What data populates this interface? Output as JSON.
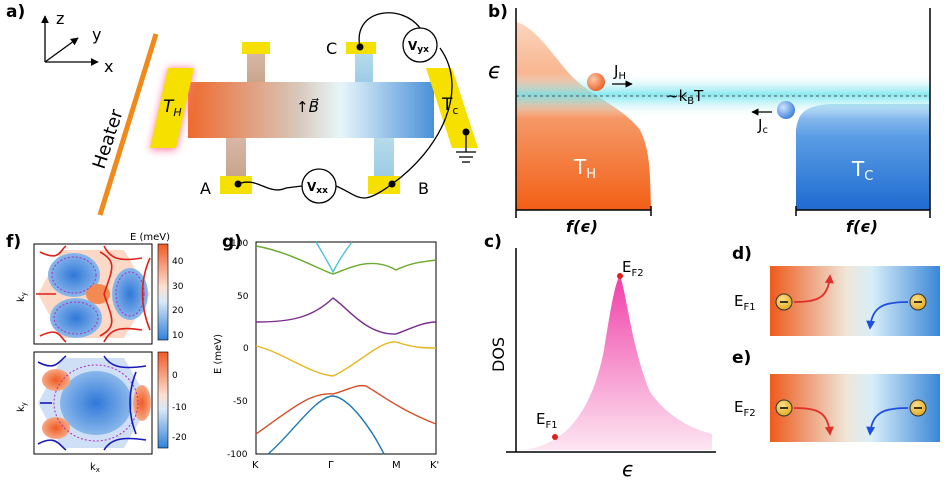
{
  "panels": {
    "a": "a)",
    "b": "b)",
    "c": "c)",
    "d": "d)",
    "e": "e)",
    "f": "f)",
    "g": "g)"
  },
  "panel_a": {
    "axes": {
      "z": "z",
      "y": "y",
      "x": "x"
    },
    "heater": "Heater",
    "th": "T",
    "th_sub": "H",
    "tc": "T",
    "tc_sub": "c",
    "field": "↑B⃗",
    "contacts": {
      "A": "A",
      "B": "B",
      "C": "C"
    },
    "vxx": "V",
    "vxx_sub": "xx",
    "vyx": "V",
    "vyx_sub": "yx",
    "colors": {
      "hot": "#f05a28",
      "cold": "#3a8fd8",
      "contact": "#f5e000",
      "heater": "#f08a1a"
    }
  },
  "panel_b": {
    "energy": "ϵ",
    "jh": "J",
    "jh_sub": "H",
    "jc": "J",
    "jc_sub": "c",
    "kbt": "~k",
    "kbt_sub": "B",
    "kbt_tail": "T",
    "th": "T",
    "th_sub": "H",
    "tc": "T",
    "tc_sub": "C",
    "f_left": "f(ϵ)",
    "f_right": "f(ϵ)"
  },
  "panel_c": {
    "ylabel": "DOS",
    "xlabel": "ϵ",
    "ef1": "E",
    "ef1_sub": "F1",
    "ef2": "E",
    "ef2_sub": "F2"
  },
  "panel_d": {
    "ef": "E",
    "ef_sub": "F1"
  },
  "panel_e": {
    "ef": "E",
    "ef_sub": "F2"
  },
  "panel_f": {
    "colorbar_title": "E (meV)",
    "top_ticks": [
      "40",
      "30",
      "20",
      "10"
    ],
    "bottom_ticks": [
      "0",
      "-10",
      "-20"
    ],
    "ky": "k",
    "ky_sub": "y",
    "kx": "k",
    "kx_sub": "x"
  },
  "panel_g": {
    "ylabel": "E (meV)",
    "yticks": [
      "100",
      "50",
      "0",
      "-50",
      "-100"
    ],
    "xticks": [
      "K",
      "Γ",
      "M",
      "K'"
    ],
    "band_colors": [
      "#6ca92f",
      "#4cc1e0",
      "#7a2d8c",
      "#e6b520",
      "#d4502a",
      "#1f77b4"
    ]
  }
}
